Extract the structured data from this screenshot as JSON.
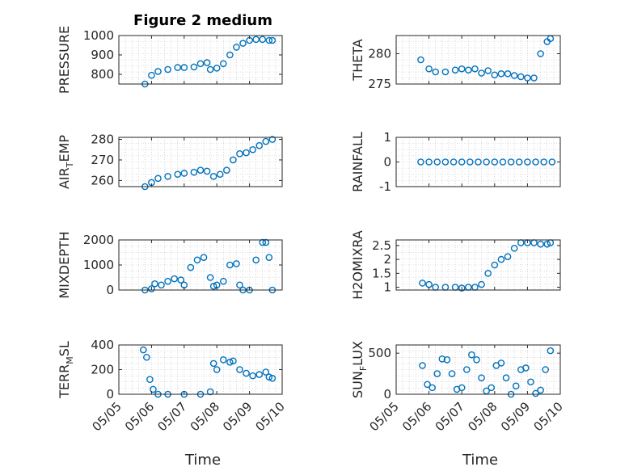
{
  "figure": {
    "title": "Figure 2 medium"
  },
  "x_ticks": [
    "05/05",
    "05/06",
    "05/07",
    "05/08",
    "05/09",
    "05/10"
  ],
  "x_label": "Time",
  "colors": {
    "marker": "#0072bd",
    "axis": "#262626",
    "grid": "#bfbfbf"
  },
  "chart_data": [
    {
      "type": "scatter",
      "ylabel": "PRESSURE",
      "ylabel_sub": "",
      "ylabel_tail": "",
      "ylim": [
        750,
        1000
      ],
      "yticks": [
        800,
        900,
        1000
      ],
      "xlim": [
        0,
        5
      ],
      "grid": true,
      "x": [
        0.8,
        1.0,
        1.2,
        1.5,
        1.8,
        2.0,
        2.3,
        2.5,
        2.7,
        2.8,
        3.0,
        3.2,
        3.4,
        3.6,
        3.8,
        4.0,
        4.2,
        4.4,
        4.6,
        4.7
      ],
      "y": [
        750,
        795,
        815,
        825,
        835,
        835,
        838,
        855,
        860,
        825,
        832,
        855,
        900,
        940,
        960,
        975,
        980,
        980,
        975,
        975
      ]
    },
    {
      "type": "scatter",
      "ylabel": "THETA",
      "ylabel_sub": "",
      "ylabel_tail": "",
      "ylim": [
        275,
        283
      ],
      "yticks": [
        275,
        280
      ],
      "xlim": [
        0,
        5
      ],
      "grid": true,
      "x": [
        0.75,
        1.0,
        1.2,
        1.5,
        1.8,
        2.0,
        2.2,
        2.4,
        2.6,
        2.8,
        3.0,
        3.2,
        3.4,
        3.6,
        3.8,
        4.0,
        4.2,
        4.4,
        4.6,
        4.7
      ],
      "y": [
        279,
        277.5,
        277,
        277,
        277.3,
        277.5,
        277.3,
        277.5,
        276.8,
        277.2,
        276.5,
        276.7,
        276.7,
        276.4,
        276.2,
        276,
        276,
        280,
        282,
        282.5
      ]
    },
    {
      "type": "scatter",
      "ylabel": "AIR",
      "ylabel_sub": "T",
      "ylabel_tail": "EMP",
      "ylim": [
        257,
        281
      ],
      "yticks": [
        260,
        270,
        280
      ],
      "xlim": [
        0,
        5
      ],
      "grid": true,
      "x": [
        0.8,
        1.0,
        1.2,
        1.5,
        1.8,
        2.0,
        2.3,
        2.5,
        2.7,
        2.9,
        3.1,
        3.3,
        3.5,
        3.7,
        3.9,
        4.1,
        4.3,
        4.5,
        4.7
      ],
      "y": [
        257,
        259,
        261,
        262,
        263,
        263.5,
        264,
        265,
        264.5,
        262,
        263,
        265,
        270,
        273,
        273.5,
        275,
        277,
        279,
        280
      ]
    },
    {
      "type": "scatter",
      "ylabel": "RAINFALL",
      "ylabel_sub": "",
      "ylabel_tail": "",
      "ylim": [
        -1,
        1
      ],
      "yticks": [
        -1,
        0,
        1
      ],
      "xlim": [
        0,
        5
      ],
      "grid": true,
      "x": [
        0.75,
        1.0,
        1.25,
        1.5,
        1.75,
        2.0,
        2.25,
        2.5,
        2.75,
        3.0,
        3.25,
        3.5,
        3.75,
        4.0,
        4.25,
        4.5,
        4.75
      ],
      "y": [
        0,
        0,
        0,
        0,
        0,
        0,
        0,
        0,
        0,
        0,
        0,
        0,
        0,
        0,
        0,
        0,
        0
      ]
    },
    {
      "type": "scatter",
      "ylabel": "MIXDEPTH",
      "ylabel_sub": "",
      "ylabel_tail": "",
      "ylim": [
        0,
        2000
      ],
      "yticks": [
        0,
        1000,
        2000
      ],
      "xlim": [
        0,
        5
      ],
      "grid": true,
      "x": [
        0.8,
        1.0,
        1.1,
        1.3,
        1.5,
        1.7,
        1.9,
        2.0,
        2.2,
        2.4,
        2.6,
        2.8,
        2.9,
        3.0,
        3.2,
        3.4,
        3.6,
        3.7,
        3.8,
        4.0,
        4.2,
        4.4,
        4.5,
        4.6,
        4.7
      ],
      "y": [
        0,
        50,
        250,
        200,
        350,
        450,
        400,
        200,
        900,
        1200,
        1300,
        500,
        150,
        200,
        350,
        1000,
        1050,
        200,
        0,
        0,
        1200,
        1900,
        1900,
        1300,
        0
      ]
    },
    {
      "type": "scatter",
      "ylabel": "H2OMIXRA",
      "ylabel_sub": "",
      "ylabel_tail": "",
      "ylim": [
        0.9,
        2.7
      ],
      "yticks": [
        1,
        1.5,
        2,
        2.5
      ],
      "xlim": [
        0,
        5
      ],
      "grid": true,
      "x": [
        0.8,
        1.0,
        1.2,
        1.5,
        1.8,
        2.0,
        2.2,
        2.4,
        2.6,
        2.8,
        3.0,
        3.2,
        3.4,
        3.6,
        3.8,
        4.0,
        4.2,
        4.4,
        4.6,
        4.7
      ],
      "y": [
        1.15,
        1.1,
        1.0,
        1.0,
        1.0,
        0.97,
        1.0,
        1.0,
        1.1,
        1.5,
        1.8,
        2.0,
        2.1,
        2.4,
        2.6,
        2.6,
        2.6,
        2.55,
        2.55,
        2.6
      ]
    },
    {
      "type": "scatter",
      "ylabel": "TERR",
      "ylabel_sub": "M",
      "ylabel_tail": "SL",
      "ylim": [
        0,
        400
      ],
      "yticks": [
        0,
        200,
        400
      ],
      "xlim": [
        0,
        5
      ],
      "grid": true,
      "x": [
        0.75,
        0.85,
        0.95,
        1.05,
        1.2,
        1.5,
        2.0,
        2.5,
        2.8,
        2.9,
        3.0,
        3.2,
        3.4,
        3.5,
        3.7,
        3.9,
        4.1,
        4.3,
        4.5,
        4.6,
        4.7
      ],
      "y": [
        360,
        300,
        120,
        40,
        0,
        0,
        0,
        0,
        20,
        250,
        200,
        280,
        260,
        270,
        200,
        170,
        150,
        160,
        180,
        140,
        130
      ]
    },
    {
      "type": "scatter",
      "ylabel": "SUN",
      "ylabel_sub": "F",
      "ylabel_tail": "LUX",
      "ylim": [
        0,
        600
      ],
      "yticks": [
        0,
        500
      ],
      "xlim": [
        0,
        5
      ],
      "grid": true,
      "x": [
        0.8,
        0.95,
        1.1,
        1.25,
        1.4,
        1.55,
        1.7,
        1.85,
        2.0,
        2.15,
        2.3,
        2.45,
        2.6,
        2.75,
        2.9,
        3.05,
        3.2,
        3.35,
        3.5,
        3.65,
        3.8,
        3.95,
        4.1,
        4.25,
        4.4,
        4.55,
        4.7
      ],
      "y": [
        350,
        120,
        80,
        250,
        430,
        420,
        250,
        60,
        80,
        300,
        480,
        420,
        200,
        40,
        80,
        350,
        380,
        200,
        0,
        100,
        300,
        320,
        150,
        10,
        50,
        300,
        530
      ]
    }
  ]
}
